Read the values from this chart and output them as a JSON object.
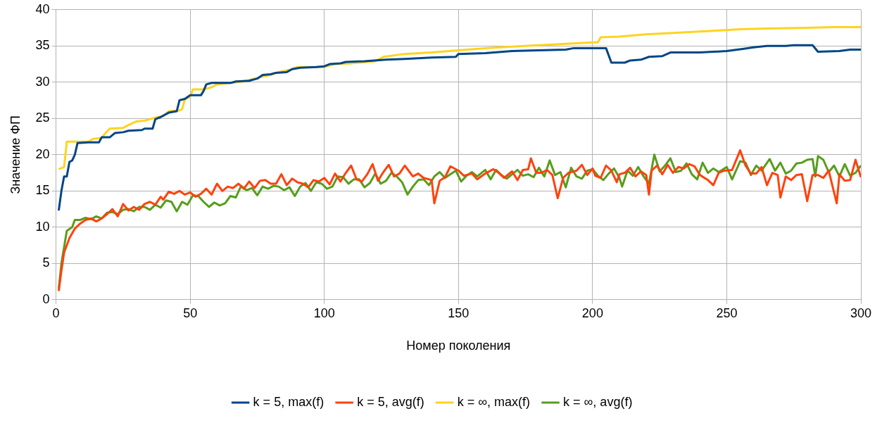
{
  "chart_data": {
    "type": "line",
    "xlabel": "Номер поколения",
    "ylabel": "Значение ФП",
    "xlim": [
      0,
      300
    ],
    "xticks": [
      0,
      50,
      100,
      150,
      200,
      250,
      300
    ],
    "ylim": [
      0,
      40
    ],
    "yticks": [
      0,
      5,
      10,
      15,
      20,
      25,
      30,
      35,
      40
    ],
    "grid": true,
    "legend": "bottom",
    "marker": "none",
    "line_style": "solid",
    "series": [
      {
        "name": "k = 5, max(f)",
        "color": "#004586",
        "x": [
          1,
          2,
          3,
          4,
          5,
          6,
          7,
          8,
          12,
          16,
          17,
          20,
          22,
          25,
          27,
          32,
          33,
          36,
          37,
          39,
          42,
          45,
          46,
          48,
          50,
          54,
          55,
          56,
          58,
          65,
          67,
          72,
          75,
          77,
          80,
          82,
          86,
          88,
          91,
          97,
          100,
          102,
          106,
          108,
          115,
          123,
          130,
          140,
          149,
          150,
          160,
          170,
          180,
          190,
          193,
          200,
          205,
          207,
          212,
          214,
          218,
          221,
          226,
          229,
          240,
          250,
          256,
          260,
          265,
          272,
          275,
          282,
          284,
          292,
          296,
          300
        ],
        "values": [
          12.3,
          15,
          17,
          17,
          19,
          19.2,
          20,
          21.6,
          21.7,
          21.7,
          22.4,
          22.4,
          23,
          23.1,
          23.3,
          23.4,
          23.6,
          23.6,
          24.9,
          25.2,
          25.8,
          26,
          27.5,
          27.7,
          28.2,
          28.2,
          28.8,
          29.7,
          29.9,
          29.9,
          30.1,
          30.2,
          30.5,
          31,
          31.1,
          31.3,
          31.4,
          31.8,
          32,
          32.1,
          32.2,
          32.5,
          32.6,
          32.8,
          32.9,
          33.1,
          33.2,
          33.4,
          33.5,
          33.9,
          34,
          34.3,
          34.4,
          34.5,
          34.7,
          34.7,
          34.7,
          32.7,
          32.7,
          33,
          33.1,
          33.5,
          33.6,
          34.1,
          34.1,
          34.3,
          34.6,
          34.8,
          35,
          35,
          35.1,
          35.1,
          34.2,
          34.3,
          34.5,
          34.5
        ]
      },
      {
        "name": "k = 5, avg(f)",
        "color": "#ff420e",
        "x": [
          1,
          2,
          3,
          5,
          7,
          9,
          11,
          13,
          15,
          17,
          19,
          21,
          23,
          25,
          27,
          29,
          31,
          33,
          35,
          37,
          39,
          40,
          42,
          44,
          46,
          48,
          50,
          52,
          54,
          56,
          58,
          60,
          62,
          64,
          66,
          68,
          70,
          72,
          74,
          76,
          78,
          80,
          82,
          84,
          86,
          88,
          90,
          92,
          94,
          96,
          98,
          100,
          102,
          104,
          106,
          108,
          110,
          112,
          114,
          116,
          118,
          120,
          122,
          124,
          126,
          128,
          130,
          133,
          135,
          137,
          140,
          141,
          143,
          145,
          147,
          150,
          152,
          155,
          157,
          160,
          163,
          165,
          167,
          170,
          172,
          174,
          176,
          177,
          179,
          181,
          183,
          185,
          187,
          189,
          191,
          194,
          196,
          198,
          200,
          201,
          203,
          205,
          207,
          209,
          210,
          212,
          214,
          216,
          218,
          220,
          221,
          222,
          224,
          226,
          228,
          230,
          232,
          234,
          236,
          238,
          240,
          243,
          245,
          247,
          249,
          252,
          255,
          257,
          259,
          261,
          263,
          265,
          267,
          269,
          270,
          272,
          274,
          276,
          278,
          280,
          282,
          284,
          286,
          288,
          290,
          291,
          292,
          294,
          296,
          298,
          300
        ],
        "values": [
          1.2,
          4,
          6.5,
          8.5,
          9.8,
          10.5,
          11,
          11.2,
          10.8,
          11.2,
          11.8,
          12.5,
          11.5,
          13.2,
          12.3,
          12.8,
          12.4,
          13.2,
          13.5,
          13.1,
          14.2,
          13.8,
          14.9,
          14.6,
          15,
          14.5,
          14.8,
          14.2,
          14.6,
          15.3,
          14.5,
          16,
          15,
          15.6,
          15.4,
          16,
          15.3,
          16.3,
          15.4,
          16.4,
          16.5,
          16,
          16,
          17.3,
          15.8,
          16.7,
          16.2,
          16,
          15.5,
          16.5,
          16.3,
          16.8,
          15.9,
          17.4,
          16.3,
          17.5,
          18.5,
          16.6,
          16.3,
          17.3,
          18.7,
          16.4,
          17.6,
          18.6,
          17,
          17.4,
          18.5,
          17,
          17.4,
          16.8,
          16.5,
          13.3,
          16.4,
          16.9,
          18.4,
          17.8,
          17.1,
          17.4,
          16.6,
          17.4,
          18,
          17.5,
          16.8,
          17.7,
          16.5,
          17.9,
          18,
          19.5,
          17.5,
          17.5,
          17.9,
          17.2,
          14,
          16.8,
          17.5,
          17.8,
          18.6,
          17.2,
          18.1,
          17.1,
          16.8,
          18.5,
          17.8,
          16.2,
          17.3,
          17.5,
          18.2,
          17,
          17.7,
          17.2,
          14.5,
          17.8,
          18.5,
          17.3,
          18.6,
          17.5,
          18.3,
          18.1,
          18.7,
          18.4,
          17.2,
          16.5,
          15.8,
          17.5,
          17.8,
          17.9,
          20.6,
          18.5,
          17.4,
          17.4,
          18.3,
          15.8,
          17.5,
          17.2,
          14.1,
          17,
          16.5,
          17.2,
          17.3,
          13.6,
          17.2,
          17.2,
          16.8,
          17.8,
          14.8,
          13.3,
          17.3,
          16.4,
          16.5,
          19.3,
          16.9
        ]
      },
      {
        "name": "k = ∞, max(f)",
        "color": "#ffd320",
        "x": [
          1,
          3,
          4,
          12,
          14,
          17,
          18,
          20,
          25,
          27,
          30,
          33,
          37,
          40,
          42,
          46,
          47,
          48,
          50,
          51,
          55,
          58,
          60,
          65,
          70,
          73,
          76,
          80,
          83,
          87,
          90,
          100,
          104,
          110,
          119,
          122,
          130,
          140,
          150,
          160,
          170,
          180,
          190,
          200,
          202,
          203,
          210,
          220,
          230,
          240,
          250,
          255,
          265,
          280,
          290,
          300
        ],
        "values": [
          18,
          18.3,
          21.8,
          21.8,
          22.2,
          22.3,
          22.8,
          23.6,
          23.7,
          24.1,
          24.6,
          24.7,
          25.1,
          25.3,
          26,
          26.1,
          26.3,
          27.6,
          28,
          29,
          29,
          29.3,
          29.7,
          29.9,
          30.1,
          30.4,
          30.7,
          31,
          31.4,
          31.7,
          32.1,
          32.1,
          32.5,
          32.6,
          32.9,
          33.5,
          33.9,
          34.1,
          34.4,
          34.7,
          34.9,
          35.1,
          35.3,
          35.5,
          35.5,
          36.2,
          36.3,
          36.6,
          36.8,
          37,
          37.2,
          37.3,
          37.4,
          37.5,
          37.6,
          37.6
        ]
      },
      {
        "name": "k = ∞, avg(f)",
        "color": "#579d1c",
        "x": [
          1,
          2,
          4,
          6,
          7,
          9,
          11,
          13,
          15,
          17,
          19,
          21,
          23,
          25,
          27,
          29,
          31,
          33,
          35,
          37,
          39,
          41,
          43,
          45,
          47,
          49,
          51,
          53,
          55,
          57,
          59,
          61,
          63,
          65,
          67,
          69,
          71,
          73,
          75,
          77,
          79,
          81,
          83,
          85,
          87,
          89,
          91,
          93,
          95,
          97,
          99,
          101,
          103,
          105,
          107,
          109,
          111,
          113,
          115,
          117,
          119,
          121,
          123,
          125,
          127,
          129,
          131,
          133,
          135,
          137,
          139,
          141,
          143,
          145,
          147,
          149,
          151,
          153,
          155,
          157,
          160,
          162,
          164,
          166,
          168,
          170,
          172,
          174,
          176,
          178,
          180,
          182,
          184,
          186,
          188,
          190,
          192,
          194,
          196,
          198,
          200,
          202,
          204,
          206,
          208,
          210,
          211,
          213,
          215,
          217,
          219,
          221,
          223,
          225,
          227,
          229,
          231,
          233,
          235,
          237,
          239,
          241,
          243,
          245,
          247,
          250,
          252,
          255,
          257,
          259,
          261,
          263,
          266,
          268,
          270,
          272,
          274,
          276,
          278,
          280,
          282,
          283,
          284,
          286,
          288,
          290,
          292,
          294,
          296,
          298,
          300
        ],
        "values": [
          1.5,
          5,
          9.5,
          10,
          11,
          11,
          11.3,
          11.1,
          11.5,
          11.2,
          12,
          12.1,
          11.8,
          12.4,
          12.5,
          12.2,
          12.8,
          12.8,
          12.4,
          13.1,
          12.7,
          13.7,
          13.5,
          12.2,
          13.5,
          13.1,
          14.4,
          14.3,
          13.5,
          12.8,
          13.4,
          13,
          13.3,
          14.3,
          14.1,
          15.7,
          15.1,
          15.4,
          14.4,
          15.6,
          15.3,
          15.7,
          15.6,
          15.1,
          15.5,
          14.3,
          15.6,
          16.1,
          15,
          16.2,
          16,
          15.3,
          15.6,
          17,
          16.9,
          16,
          16.6,
          16.6,
          15.5,
          16.1,
          17.4,
          16,
          16.4,
          17.5,
          17,
          16.2,
          14.5,
          15.6,
          16.5,
          16.6,
          15.8,
          17,
          17.6,
          16.8,
          17.3,
          17.8,
          16.3,
          17.1,
          17.6,
          17,
          17.9,
          16.6,
          17.9,
          17.2,
          16.7,
          17.3,
          17.9,
          17.1,
          17.3,
          16.9,
          18.2,
          17,
          19.2,
          17.2,
          17.6,
          15.5,
          18.2,
          17,
          16.7,
          17.8,
          18,
          17.1,
          16.5,
          17.4,
          18.1,
          16.8,
          15.6,
          17.8,
          17.1,
          18.3,
          17,
          16,
          20,
          17.7,
          18.5,
          19.5,
          17.6,
          17.8,
          18.8,
          17.3,
          16.6,
          18.9,
          17.5,
          18.1,
          17.6,
          18.3,
          16.6,
          19.1,
          18.9,
          17.2,
          18.5,
          17.8,
          19.4,
          17.8,
          18.9,
          17.4,
          17.8,
          18.8,
          18.9,
          19.3,
          19.4,
          17,
          19.8,
          19.3,
          17.6,
          18.5,
          17,
          18.7,
          17.1,
          17.5,
          18.5
        ]
      }
    ]
  }
}
